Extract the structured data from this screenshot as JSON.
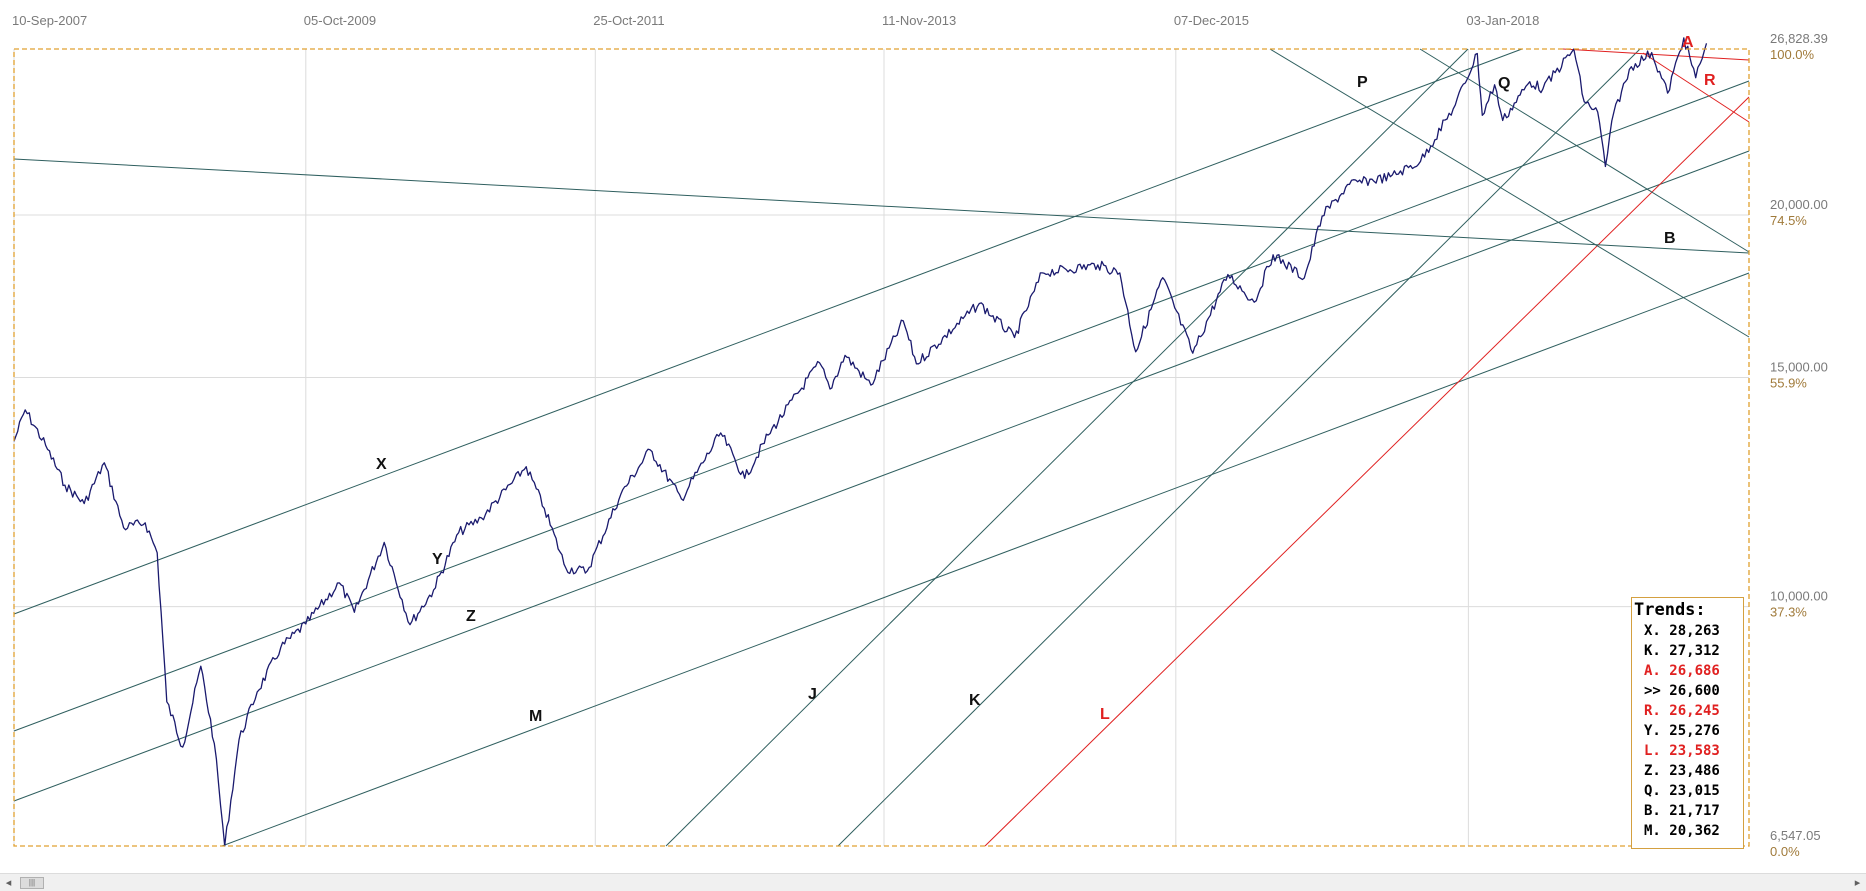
{
  "chart_data": {
    "type": "line",
    "title": "",
    "xlabel": "",
    "ylabel": "",
    "x_tick_labels": [
      "10-Sep-2007",
      "05-Oct-2009",
      "25-Oct-2011",
      "11-Nov-2013",
      "07-Dec-2015",
      "03-Jan-2018"
    ],
    "y_tick_values": [
      "26,828.39",
      "20,000.00",
      "15,000.00",
      "10,000.00",
      "6,547.05"
    ],
    "y_tick_percents": [
      "100.0%",
      "74.5%",
      "55.9%",
      "37.3%",
      "0.0%"
    ],
    "ylim": [
      6547.05,
      26828.39
    ],
    "xlim": [
      "2007-09-10",
      "2019-12-31"
    ],
    "grid": true,
    "series": [
      {
        "color": "#1a1a6e",
        "points": [
          [
            "2007-09-10",
            13400
          ],
          [
            "2007-10-09",
            14164
          ],
          [
            "2007-12-01",
            13300
          ],
          [
            "2008-01-20",
            12400
          ],
          [
            "2008-03-10",
            12000
          ],
          [
            "2008-05-01",
            12900
          ],
          [
            "2008-06-20",
            11500
          ],
          [
            "2008-08-15",
            11600
          ],
          [
            "2008-09-15",
            11000
          ],
          [
            "2008-10-10",
            8450
          ],
          [
            "2008-11-20",
            7800
          ],
          [
            "2009-01-06",
            9000
          ],
          [
            "2009-02-10",
            7850
          ],
          [
            "2009-03-09",
            6547
          ],
          [
            "2009-04-15",
            7900
          ],
          [
            "2009-06-01",
            8600
          ],
          [
            "2009-08-01",
            9300
          ],
          [
            "2009-10-05",
            9700
          ],
          [
            "2009-12-31",
            10430
          ],
          [
            "2010-02-08",
            9900
          ],
          [
            "2010-04-26",
            11205
          ],
          [
            "2010-07-02",
            9686
          ],
          [
            "2010-09-01",
            10300
          ],
          [
            "2010-11-05",
            11400
          ],
          [
            "2011-01-03",
            11700
          ],
          [
            "2011-04-29",
            12810
          ],
          [
            "2011-06-15",
            11900
          ],
          [
            "2011-08-10",
            10700
          ],
          [
            "2011-10-04",
            10650
          ],
          [
            "2011-12-30",
            12200
          ],
          [
            "2012-03-15",
            13200
          ],
          [
            "2012-06-04",
            12100
          ],
          [
            "2012-09-14",
            13600
          ],
          [
            "2012-11-15",
            12550
          ],
          [
            "2013-01-15",
            13550
          ],
          [
            "2013-05-28",
            15400
          ],
          [
            "2013-06-24",
            14700
          ],
          [
            "2013-08-02",
            15600
          ],
          [
            "2013-10-08",
            14800
          ],
          [
            "2013-12-31",
            16580
          ],
          [
            "2014-02-03",
            15370
          ],
          [
            "2014-07-16",
            17100
          ],
          [
            "2014-10-15",
            16100
          ],
          [
            "2014-12-26",
            18050
          ],
          [
            "2015-05-19",
            18310
          ],
          [
            "2015-07-15",
            18050
          ],
          [
            "2015-08-25",
            15700
          ],
          [
            "2015-11-03",
            17900
          ],
          [
            "2016-01-20",
            15660
          ],
          [
            "2016-04-20",
            18000
          ],
          [
            "2016-06-27",
            17140
          ],
          [
            "2016-08-15",
            18640
          ],
          [
            "2016-11-04",
            17890
          ],
          [
            "2016-12-20",
            19960
          ],
          [
            "2017-03-01",
            21115
          ],
          [
            "2017-06-15",
            21400
          ],
          [
            "2017-09-01",
            21990
          ],
          [
            "2017-11-30",
            24300
          ],
          [
            "2018-01-26",
            26616
          ],
          [
            "2018-02-08",
            23860
          ],
          [
            "2018-03-12",
            25180
          ],
          [
            "2018-04-02",
            23640
          ],
          [
            "2018-06-11",
            25320
          ],
          [
            "2018-07-15",
            25000
          ],
          [
            "2018-10-03",
            26828
          ],
          [
            "2018-10-30",
            24440
          ],
          [
            "2018-12-04",
            24000
          ],
          [
            "2018-12-24",
            21792
          ],
          [
            "2019-01-15",
            24000
          ],
          [
            "2019-03-01",
            26000
          ],
          [
            "2019-04-23",
            26656
          ],
          [
            "2019-06-03",
            24815
          ],
          [
            "2019-07-15",
            27360
          ],
          [
            "2019-08-15",
            25500
          ],
          [
            "2019-09-12",
            27100
          ]
        ]
      }
    ],
    "trend_lines": [
      {
        "label": "X",
        "color": "#2f5f5f"
      },
      {
        "label": "Y",
        "color": "#2f5f5f"
      },
      {
        "label": "Z",
        "color": "#2f5f5f"
      },
      {
        "label": "M",
        "color": "#2f5f5f"
      },
      {
        "label": "J",
        "color": "#2f5f5f"
      },
      {
        "label": "K",
        "color": "#2f5f5f"
      },
      {
        "label": "L",
        "color": "#e02020"
      },
      {
        "label": "P",
        "color": "#2f5f5f"
      },
      {
        "label": "Q",
        "color": "#2f5f5f"
      },
      {
        "label": "B",
        "color": "#2f5f5f"
      },
      {
        "label": "A",
        "color": "#e02020"
      },
      {
        "label": "R",
        "color": "#e02020"
      }
    ]
  },
  "trends_panel": {
    "title": "Trends:",
    "rows": [
      {
        "text": "X. 28,263",
        "color": "#000000"
      },
      {
        "text": "K. 27,312",
        "color": "#000000"
      },
      {
        "text": "A. 26,686",
        "color": "#e02020"
      },
      {
        "text": ">> 26,600",
        "color": "#000000"
      },
      {
        "text": "R. 26,245",
        "color": "#e02020"
      },
      {
        "text": "Y. 25,276",
        "color": "#000000"
      },
      {
        "text": "L. 23,583",
        "color": "#e02020"
      },
      {
        "text": "Z. 23,486",
        "color": "#000000"
      },
      {
        "text": "Q. 23,015",
        "color": "#000000"
      },
      {
        "text": "B. 21,717",
        "color": "#000000"
      },
      {
        "text": "M. 20,362",
        "color": "#000000"
      }
    ]
  },
  "scrollbar": {
    "left_arrow": "◂",
    "right_arrow": "▸",
    "thumb": "|||"
  }
}
